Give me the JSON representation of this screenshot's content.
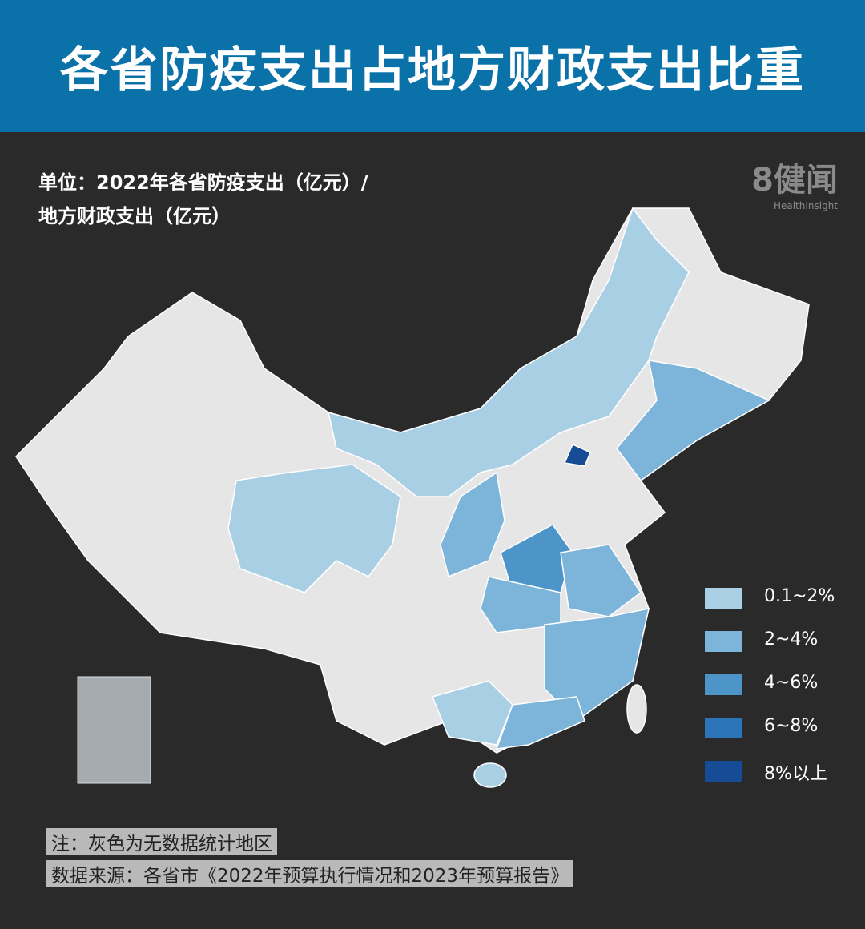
{
  "header": {
    "title": "各省防疫支出占地方财政支出比重"
  },
  "subtitle": {
    "line1": "单位：2022年各省防疫支出（亿元）/",
    "line2": "地方财政支出（亿元）"
  },
  "logo": {
    "mark": "8健闻",
    "sub": "HealthInsight"
  },
  "legend": {
    "items": [
      {
        "label": "0.1~2%",
        "color": "#a9cfe5"
      },
      {
        "label": "2~4%",
        "color": "#7db4da"
      },
      {
        "label": "4~6%",
        "color": "#4d95c9"
      },
      {
        "label": "6~8%",
        "color": "#2c74b8"
      },
      {
        "label": "8%以上",
        "color": "#164c95"
      }
    ]
  },
  "notes": {
    "note": "注：灰色为无数据统计地区",
    "source": "数据来源：各省市《2022年预算执行情况和2023年预算报告》"
  }
}
